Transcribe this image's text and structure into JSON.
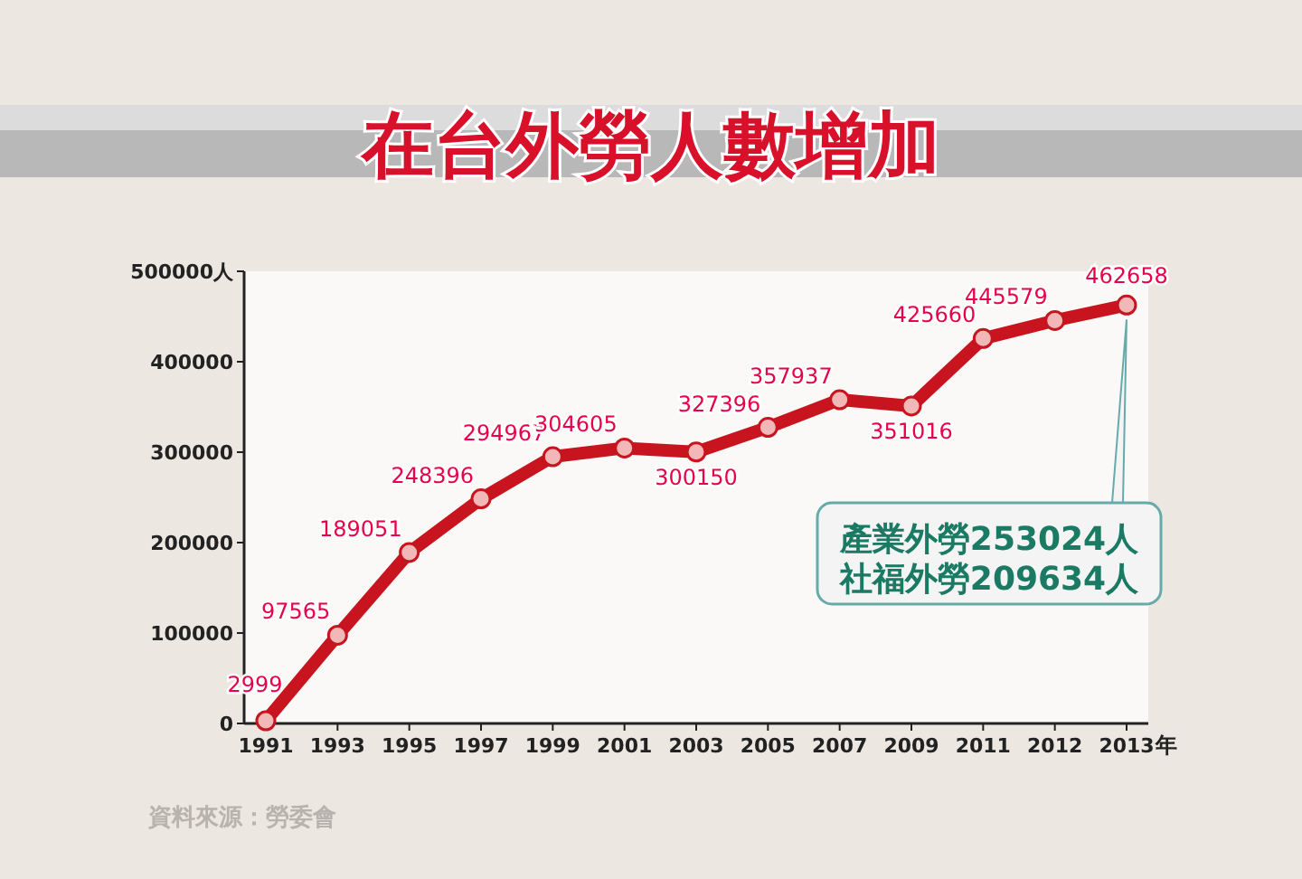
{
  "chart_data": {
    "type": "line",
    "title": "在台外勞人數增加",
    "xlabel": "年",
    "categories": [
      "1991",
      "1993",
      "1995",
      "1997",
      "1999",
      "2001",
      "2003",
      "2005",
      "2007",
      "2009",
      "2011",
      "2012",
      "2013"
    ],
    "series": [
      {
        "color": "#c8141e",
        "values": [
          2999,
          97565,
          189051,
          248396,
          294967,
          304605,
          300150,
          327396,
          357937,
          351016,
          425660,
          445579,
          462658
        ]
      }
    ],
    "ylim": [
      0,
      500000
    ],
    "yticks": [
      0,
      100000,
      200000,
      300000,
      400000,
      {
        "value": 500000,
        "label": "500000人"
      }
    ],
    "marker": "circle",
    "data_labels": true,
    "grid": false,
    "annotations": [
      {
        "text": "產業外勞253024人",
        "x": "2013",
        "y": 462658
      },
      "社福外勞209634人",
      "資料來源：勞委會"
    ]
  }
}
